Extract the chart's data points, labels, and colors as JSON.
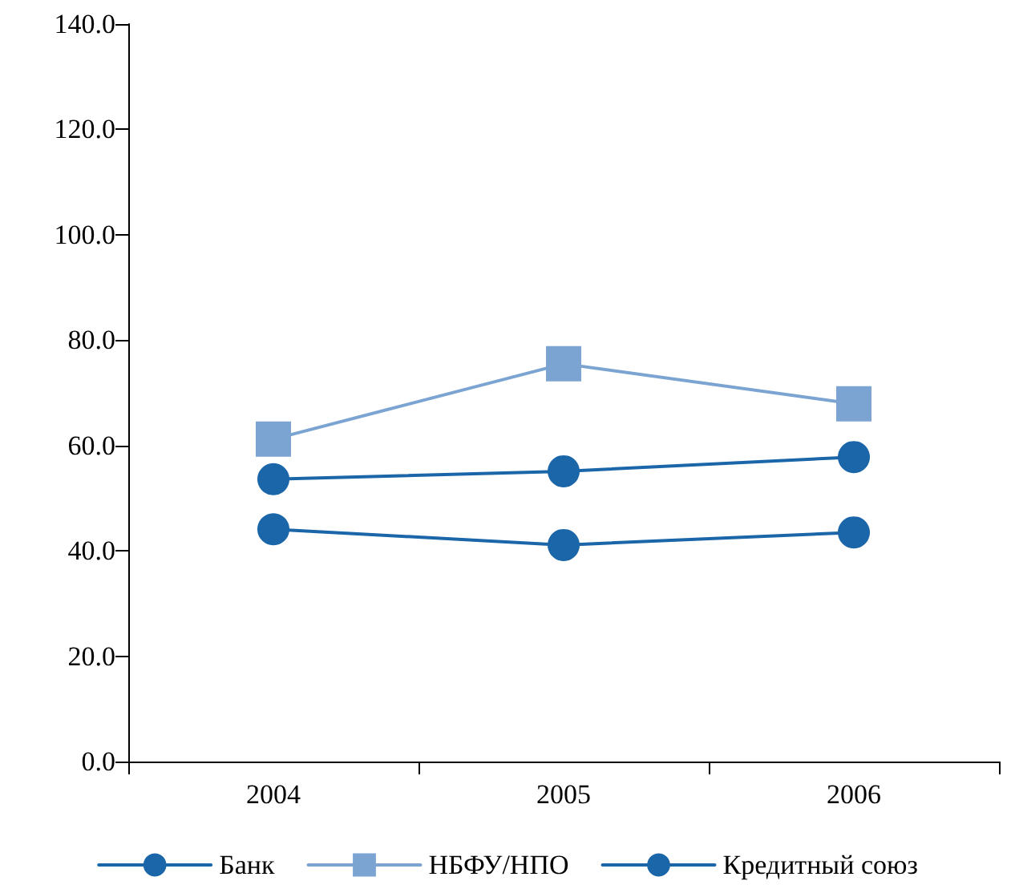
{
  "chart_data": {
    "type": "line",
    "categories": [
      "2004",
      "2005",
      "2006"
    ],
    "series": [
      {
        "name": "Банк",
        "color": "#1a66a8",
        "values": [
          44.1,
          41.1,
          43.5
        ],
        "marker": "circle"
      },
      {
        "name": "НБФУ/НПО",
        "color": "#7ba4d2",
        "values": [
          61.2,
          75.5,
          67.9
        ],
        "marker": "square"
      },
      {
        "name": "Кредитный союз",
        "color": "#1a66a8",
        "values": [
          53.6,
          55.1,
          57.8
        ],
        "marker": "circle"
      }
    ],
    "ylim": [
      0,
      140
    ],
    "yticks": [
      {
        "value": 0,
        "label": "0.0"
      },
      {
        "value": 20,
        "label": "20.0"
      },
      {
        "value": 40,
        "label": "40.0"
      },
      {
        "value": 60,
        "label": "60.0"
      },
      {
        "value": 80,
        "label": "80.0"
      },
      {
        "value": 100,
        "label": "100.0"
      },
      {
        "value": 120,
        "label": "120.0"
      },
      {
        "value": 140,
        "label": "140.0"
      }
    ],
    "grid": false,
    "legend": "bottom",
    "line_style": "solid"
  }
}
